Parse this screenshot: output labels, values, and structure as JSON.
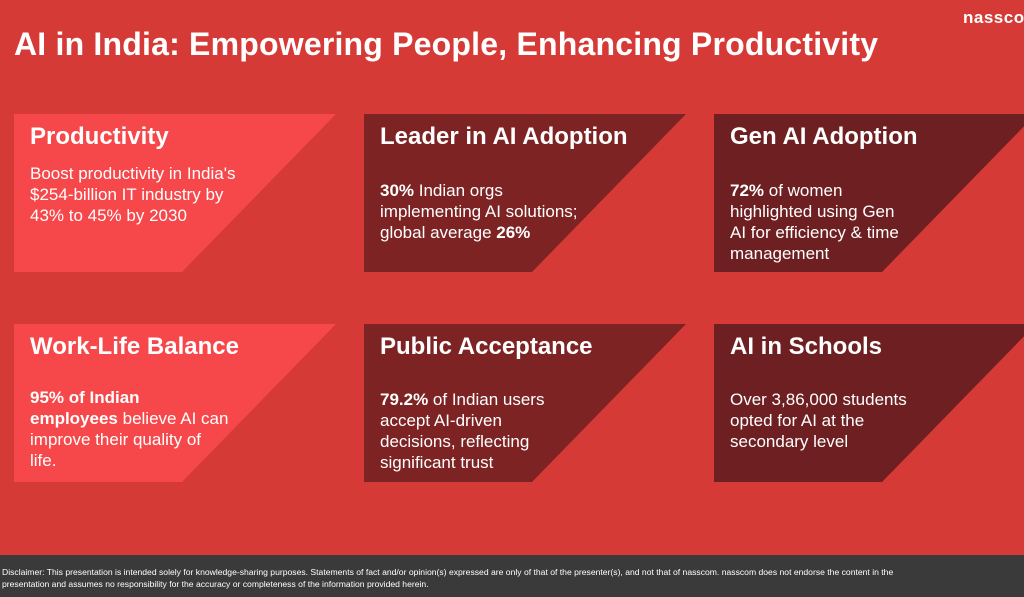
{
  "brand": "nasscom",
  "title": "AI in India: Empowering People, Enhancing Productivity",
  "colors": {
    "background": "#d63a36",
    "card_light": "#f6474a",
    "card_mid": "#7e2323",
    "card_dark": "#6e1f21"
  },
  "cards": [
    {
      "heading": "Productivity",
      "pre": "",
      "bold": "",
      "post": "Boost productivity in India's $254-billion IT industry by 43% to 45% by 2030",
      "bold2": ""
    },
    {
      "heading": "Leader in AI Adoption",
      "pre": "",
      "bold": "30%",
      "post": " Indian orgs implementing AI solutions; global average ",
      "bold2": "26%"
    },
    {
      "heading": "Gen AI Adoption",
      "pre": "",
      "bold": "72%",
      "post": " of women highlighted using Gen AI for efficiency & time management",
      "bold2": ""
    },
    {
      "heading": "Work-Life Balance",
      "pre": "",
      "bold": "95% of Indian employees",
      "post": " believe AI can improve their quality of life.",
      "bold2": ""
    },
    {
      "heading": "Public Acceptance",
      "pre": "",
      "bold": "79.2%",
      "post": " of Indian users accept AI-driven decisions, reflecting significant trust",
      "bold2": ""
    },
    {
      "heading": "AI in Schools",
      "pre": "",
      "bold": "",
      "post": "Over 3,86,000 students opted for AI at the secondary level",
      "bold2": ""
    }
  ],
  "disclaimer": {
    "line1": "Disclaimer: This presentation is intended solely for knowledge-sharing purposes. Statements of fact and/or opinion(s) expressed are only of that of the presenter(s), and not that of nasscom. nasscom does not endorse the content in the",
    "line2": "presentation and assumes no responsibility for the accuracy or completeness of the information provided herein."
  }
}
